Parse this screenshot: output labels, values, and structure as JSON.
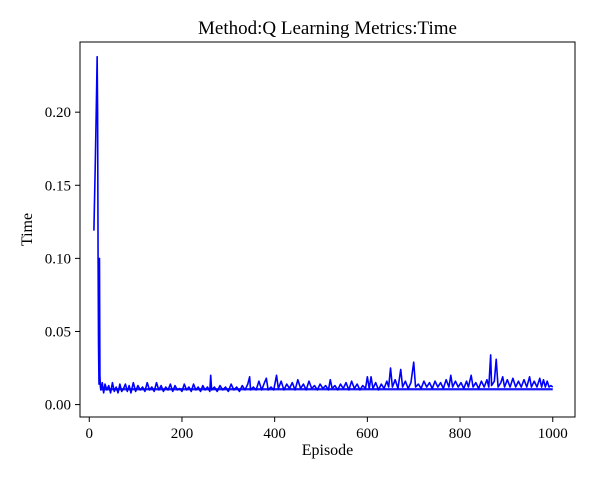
{
  "chart_data": {
    "type": "line",
    "title": "Method:Q Learning   Metrics:Time",
    "xlabel": "Episode",
    "ylabel": "Time",
    "xlim": [
      -20,
      1048
    ],
    "ylim": [
      -0.0085,
      0.248
    ],
    "xticks": [
      0,
      200,
      400,
      600,
      800,
      1000
    ],
    "yticks": [
      0.0,
      0.05,
      0.1,
      0.15,
      0.2
    ],
    "xtick_labels": [
      "0",
      "200",
      "400",
      "600",
      "800",
      "1000"
    ],
    "ytick_labels": [
      "0.00",
      "0.05",
      "0.10",
      "0.15",
      "0.20"
    ],
    "grid": false,
    "series": [
      {
        "color": "#0000ff",
        "baseline": 0.0105,
        "points": [
          [
            10,
            0.119
          ],
          [
            13,
            0.165
          ],
          [
            15,
            0.2
          ],
          [
            17,
            0.238
          ],
          [
            18,
            0.2
          ],
          [
            19,
            0.1
          ],
          [
            20,
            0.04
          ],
          [
            21,
            0.014
          ],
          [
            22,
            0.1
          ],
          [
            23,
            0.02
          ],
          [
            24,
            0.012
          ],
          [
            25,
            0.01
          ],
          [
            28,
            0.015
          ],
          [
            31,
            0.008
          ],
          [
            34,
            0.014
          ],
          [
            38,
            0.01
          ],
          [
            42,
            0.013
          ],
          [
            46,
            0.008
          ],
          [
            50,
            0.015
          ],
          [
            54,
            0.009
          ],
          [
            58,
            0.012
          ],
          [
            62,
            0.008
          ],
          [
            66,
            0.014
          ],
          [
            70,
            0.009
          ],
          [
            74,
            0.011
          ],
          [
            78,
            0.014
          ],
          [
            82,
            0.009
          ],
          [
            86,
            0.013
          ],
          [
            90,
            0.008
          ],
          [
            95,
            0.015
          ],
          [
            100,
            0.009
          ],
          [
            105,
            0.013
          ],
          [
            110,
            0.01
          ],
          [
            115,
            0.012
          ],
          [
            120,
            0.009
          ],
          [
            125,
            0.015
          ],
          [
            130,
            0.01
          ],
          [
            135,
            0.012
          ],
          [
            140,
            0.009
          ],
          [
            145,
            0.015
          ],
          [
            150,
            0.01
          ],
          [
            155,
            0.013
          ],
          [
            160,
            0.009
          ],
          [
            165,
            0.012
          ],
          [
            170,
            0.01
          ],
          [
            175,
            0.014
          ],
          [
            180,
            0.009
          ],
          [
            185,
            0.013
          ],
          [
            190,
            0.01
          ],
          [
            195,
            0.011
          ],
          [
            200,
            0.009
          ],
          [
            205,
            0.014
          ],
          [
            210,
            0.01
          ],
          [
            215,
            0.012
          ],
          [
            220,
            0.009
          ],
          [
            225,
            0.014
          ],
          [
            230,
            0.01
          ],
          [
            235,
            0.012
          ],
          [
            240,
            0.009
          ],
          [
            245,
            0.013
          ],
          [
            250,
            0.01
          ],
          [
            255,
            0.012
          ],
          [
            260,
            0.009
          ],
          [
            262,
            0.02
          ],
          [
            264,
            0.01
          ],
          [
            270,
            0.012
          ],
          [
            276,
            0.009
          ],
          [
            282,
            0.013
          ],
          [
            288,
            0.01
          ],
          [
            294,
            0.012
          ],
          [
            300,
            0.009
          ],
          [
            306,
            0.014
          ],
          [
            312,
            0.01
          ],
          [
            318,
            0.012
          ],
          [
            324,
            0.009
          ],
          [
            330,
            0.013
          ],
          [
            336,
            0.01
          ],
          [
            342,
            0.014
          ],
          [
            346,
            0.019
          ],
          [
            348,
            0.01
          ],
          [
            354,
            0.012
          ],
          [
            360,
            0.01
          ],
          [
            366,
            0.016
          ],
          [
            372,
            0.01
          ],
          [
            378,
            0.015
          ],
          [
            382,
            0.018
          ],
          [
            386,
            0.01
          ],
          [
            392,
            0.012
          ],
          [
            398,
            0.01
          ],
          [
            404,
            0.02
          ],
          [
            408,
            0.011
          ],
          [
            414,
            0.016
          ],
          [
            420,
            0.01
          ],
          [
            426,
            0.014
          ],
          [
            432,
            0.011
          ],
          [
            438,
            0.015
          ],
          [
            444,
            0.01
          ],
          [
            450,
            0.017
          ],
          [
            456,
            0.011
          ],
          [
            462,
            0.014
          ],
          [
            468,
            0.01
          ],
          [
            474,
            0.016
          ],
          [
            480,
            0.011
          ],
          [
            486,
            0.013
          ],
          [
            492,
            0.01
          ],
          [
            498,
            0.014
          ],
          [
            504,
            0.011
          ],
          [
            510,
            0.013
          ],
          [
            516,
            0.01
          ],
          [
            520,
            0.017
          ],
          [
            524,
            0.011
          ],
          [
            530,
            0.013
          ],
          [
            536,
            0.01
          ],
          [
            542,
            0.014
          ],
          [
            548,
            0.011
          ],
          [
            554,
            0.015
          ],
          [
            560,
            0.01
          ],
          [
            566,
            0.016
          ],
          [
            572,
            0.011
          ],
          [
            578,
            0.014
          ],
          [
            584,
            0.01
          ],
          [
            590,
            0.013
          ],
          [
            596,
            0.011
          ],
          [
            600,
            0.019
          ],
          [
            604,
            0.011
          ],
          [
            608,
            0.019
          ],
          [
            612,
            0.011
          ],
          [
            618,
            0.015
          ],
          [
            624,
            0.01
          ],
          [
            630,
            0.014
          ],
          [
            636,
            0.011
          ],
          [
            642,
            0.016
          ],
          [
            646,
            0.012
          ],
          [
            650,
            0.025
          ],
          [
            654,
            0.012
          ],
          [
            660,
            0.017
          ],
          [
            666,
            0.011
          ],
          [
            672,
            0.024
          ],
          [
            676,
            0.012
          ],
          [
            682,
            0.016
          ],
          [
            688,
            0.011
          ],
          [
            694,
            0.015
          ],
          [
            700,
            0.029
          ],
          [
            704,
            0.012
          ],
          [
            710,
            0.014
          ],
          [
            716,
            0.011
          ],
          [
            722,
            0.016
          ],
          [
            728,
            0.012
          ],
          [
            734,
            0.015
          ],
          [
            740,
            0.011
          ],
          [
            746,
            0.016
          ],
          [
            752,
            0.012
          ],
          [
            758,
            0.015
          ],
          [
            764,
            0.011
          ],
          [
            770,
            0.017
          ],
          [
            776,
            0.012
          ],
          [
            780,
            0.02
          ],
          [
            784,
            0.012
          ],
          [
            790,
            0.016
          ],
          [
            796,
            0.012
          ],
          [
            802,
            0.015
          ],
          [
            808,
            0.011
          ],
          [
            814,
            0.016
          ],
          [
            818,
            0.012
          ],
          [
            824,
            0.02
          ],
          [
            828,
            0.012
          ],
          [
            834,
            0.015
          ],
          [
            840,
            0.011
          ],
          [
            846,
            0.016
          ],
          [
            852,
            0.012
          ],
          [
            858,
            0.017
          ],
          [
            862,
            0.012
          ],
          [
            866,
            0.034
          ],
          [
            868,
            0.013
          ],
          [
            874,
            0.016
          ],
          [
            878,
            0.031
          ],
          [
            882,
            0.012
          ],
          [
            888,
            0.015
          ],
          [
            892,
            0.019
          ],
          [
            896,
            0.012
          ],
          [
            902,
            0.017
          ],
          [
            908,
            0.012
          ],
          [
            914,
            0.018
          ],
          [
            920,
            0.012
          ],
          [
            926,
            0.016
          ],
          [
            932,
            0.012
          ],
          [
            938,
            0.017
          ],
          [
            944,
            0.012
          ],
          [
            950,
            0.019
          ],
          [
            954,
            0.012
          ],
          [
            960,
            0.016
          ],
          [
            966,
            0.012
          ],
          [
            972,
            0.018
          ],
          [
            976,
            0.012
          ],
          [
            980,
            0.017
          ],
          [
            984,
            0.012
          ],
          [
            988,
            0.016
          ],
          [
            992,
            0.012
          ],
          [
            996,
            0.013
          ],
          [
            1000,
            0.012
          ]
        ]
      }
    ]
  }
}
